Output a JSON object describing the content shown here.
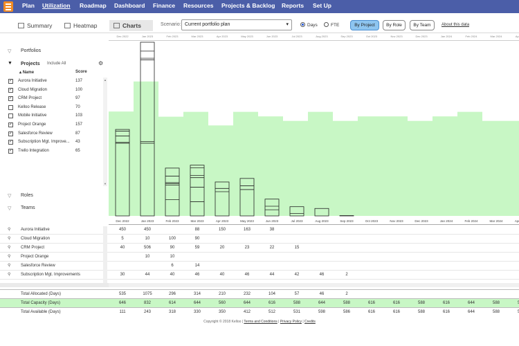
{
  "nav": {
    "items": [
      "Plan",
      "Utilization",
      "Roadmap",
      "Dashboard",
      "Finance",
      "Resources",
      "Projects & Backlog",
      "Reports",
      "Set Up"
    ],
    "active": "Utilization"
  },
  "tabs": [
    "Summary",
    "Heatmap",
    "Charts"
  ],
  "active_tab": "Charts",
  "scenario": {
    "label": "Scenario:",
    "value": "Current portfolio plan"
  },
  "units": {
    "days": "Days",
    "fte": "FTE",
    "selected": "Days"
  },
  "view_buttons": [
    "By Project",
    "By Role",
    "By Team"
  ],
  "active_view": "By Project",
  "about_link": "About this data",
  "sidebar": {
    "portfolios": "Portfolios",
    "projects": "Projects",
    "include_all": "Include All",
    "col_name": "Name",
    "col_score": "Score",
    "roles": "Roles",
    "teams": "Teams",
    "projects_list": [
      {
        "name": "Aurora Initiative",
        "score": "137",
        "checked": true
      },
      {
        "name": "Cloud Migration",
        "score": "100",
        "checked": true
      },
      {
        "name": "CRM Project",
        "score": "97",
        "checked": true
      },
      {
        "name": "Kelloo Release",
        "score": "70",
        "checked": false
      },
      {
        "name": "Mobile Initiative",
        "score": "103",
        "checked": false
      },
      {
        "name": "Project Orange",
        "score": "157",
        "checked": true
      },
      {
        "name": "Salesforce Review",
        "score": "87",
        "checked": true
      },
      {
        "name": "Subscription Mgt. Improve...",
        "score": "43",
        "checked": true
      },
      {
        "name": "Trello Integration",
        "score": "65",
        "checked": true
      }
    ]
  },
  "chart_data": {
    "type": "bar",
    "categories": [
      "Dec 2022",
      "Jan 2023",
      "Feb 2023",
      "Mar 2023",
      "Apr 2023",
      "May 2023",
      "Jun 2023",
      "Jul 2023",
      "Aug 2023",
      "Sep 2023",
      "Oct 2023",
      "Nov 2023",
      "Dec 2023",
      "Jan 2024",
      "Feb 2024",
      "Mar 2024",
      "Apr 2024"
    ],
    "series": [
      {
        "name": "Total Capacity (Days)",
        "values": [
          646,
          832,
          614,
          644,
          560,
          644,
          616,
          588,
          644,
          588,
          616,
          616,
          588,
          616,
          644,
          588,
          588
        ]
      },
      {
        "name": "Total Allocated (Days)",
        "values": [
          535,
          1075,
          296,
          314,
          210,
          232,
          104,
          57,
          46,
          2,
          0,
          0,
          0,
          0,
          0,
          0,
          0
        ]
      }
    ],
    "ylim": [
      0,
      1075
    ],
    "capacity_color": "#c8f7c5",
    "allocation_color": "#222222"
  },
  "grid": {
    "rows": [
      {
        "name": "Aurora Initiative",
        "values": [
          "450",
          "450",
          "",
          "88",
          "150",
          "163",
          "38",
          "",
          "",
          "",
          "",
          "",
          "",
          "",
          "",
          "",
          ""
        ]
      },
      {
        "name": "Cloud Migration",
        "values": [
          "5",
          "10",
          "100",
          "90",
          "",
          "",
          "",
          "",
          "",
          "",
          "",
          "",
          "",
          "",
          "",
          "",
          ""
        ]
      },
      {
        "name": "CRM Project",
        "values": [
          "40",
          "506",
          "90",
          "59",
          "20",
          "23",
          "22",
          "15",
          "",
          "",
          "",
          "",
          "",
          "",
          "",
          "",
          ""
        ]
      },
      {
        "name": "Project Orange",
        "values": [
          "",
          "10",
          "10",
          "",
          "",
          "",
          "",
          "",
          "",
          "",
          "",
          "",
          "",
          "",
          "",
          "",
          ""
        ]
      },
      {
        "name": "Salesforce Review",
        "values": [
          "",
          "",
          "6",
          "14",
          "",
          "",
          "",
          "",
          "",
          "",
          "",
          "",
          "",
          "",
          "",
          "",
          ""
        ]
      },
      {
        "name": "Subscription Mgt. Improvements",
        "values": [
          "30",
          "44",
          "40",
          "46",
          "40",
          "46",
          "44",
          "42",
          "46",
          "2",
          "",
          "",
          "",
          "",
          "",
          "",
          ""
        ]
      }
    ],
    "totals": [
      {
        "name": "Total Allocated (Days)",
        "values": [
          "535",
          "1075",
          "296",
          "314",
          "210",
          "232",
          "104",
          "57",
          "46",
          "2",
          "",
          "",
          "",
          "",
          "",
          "",
          ""
        ]
      },
      {
        "name": "Total Capacity (Days)",
        "values": [
          "646",
          "832",
          "614",
          "644",
          "560",
          "644",
          "616",
          "588",
          "644",
          "588",
          "616",
          "616",
          "588",
          "616",
          "644",
          "588",
          "588"
        ]
      },
      {
        "name": "Total Available (Days)",
        "values": [
          "111",
          "243",
          "318",
          "330",
          "350",
          "412",
          "512",
          "531",
          "598",
          "586",
          "616",
          "616",
          "588",
          "616",
          "644",
          "588",
          "588"
        ]
      }
    ]
  },
  "footer": {
    "copyright": "Copyright © 2018 Kelloo",
    "links": [
      "Terms and Conditions",
      "Privacy Policy",
      "Credits"
    ]
  }
}
